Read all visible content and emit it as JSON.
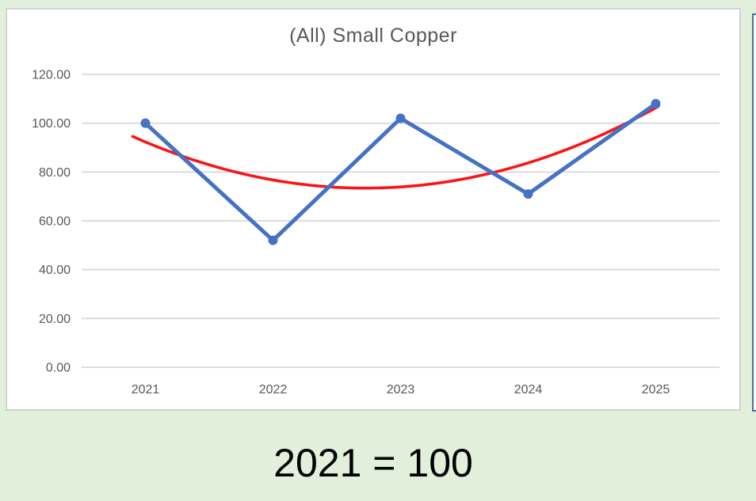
{
  "caption": {
    "text": "2021 = 100"
  },
  "colors": {
    "page_background": "#E2EFDB",
    "chart_background": "#FFFFFF",
    "chart_border": "#D2D2D2",
    "gridline": "#D9D9D9",
    "axis_text": "#595959",
    "title_text": "#595959",
    "series_blue": "#4472C4",
    "trendline_red": "#FB1414",
    "adjacent_chart_border": "#41719C"
  },
  "chart_data": {
    "type": "line",
    "title": "(All) Small Copper",
    "xlabel": "",
    "ylabel": "",
    "categories": [
      "2021",
      "2022",
      "2023",
      "2024",
      "2025"
    ],
    "series": [
      {
        "name": "(All) Small Copper",
        "color": "#4472C4",
        "marker": true,
        "values": [
          100.0,
          52.0,
          102.0,
          71.0,
          108.0
        ]
      }
    ],
    "trendline": {
      "type": "polynomial",
      "order": 2,
      "series": 0,
      "color": "#FB1414"
    },
    "ylim": [
      0,
      120
    ],
    "y_ticks": {
      "values": [
        0,
        20,
        40,
        60,
        80,
        100,
        120
      ],
      "labels": [
        "0.00",
        "20.00",
        "40.00",
        "60.00",
        "80.00",
        "100.00",
        "120.00"
      ]
    },
    "grid": "horizontal",
    "legend": "none"
  }
}
